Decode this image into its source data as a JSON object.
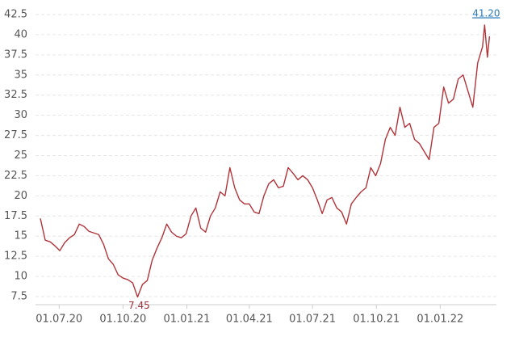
{
  "chart_data": {
    "type": "line",
    "color": "#b0343a",
    "x": [
      "2020-06-04",
      "2020-06-11",
      "2020-06-18",
      "2020-06-25",
      "2020-07-02",
      "2020-07-09",
      "2020-07-16",
      "2020-07-23",
      "2020-07-30",
      "2020-08-06",
      "2020-08-13",
      "2020-08-20",
      "2020-08-27",
      "2020-09-03",
      "2020-09-10",
      "2020-09-17",
      "2020-09-24",
      "2020-10-01",
      "2020-10-08",
      "2020-10-15",
      "2020-10-22",
      "2020-10-29",
      "2020-11-05",
      "2020-11-12",
      "2020-11-19",
      "2020-11-26",
      "2020-12-03",
      "2020-12-10",
      "2020-12-17",
      "2020-12-24",
      "2020-12-31",
      "2021-01-07",
      "2021-01-14",
      "2021-01-21",
      "2021-01-28",
      "2021-02-04",
      "2021-02-11",
      "2021-02-18",
      "2021-02-25",
      "2021-03-04",
      "2021-03-11",
      "2021-03-18",
      "2021-03-25",
      "2021-04-01",
      "2021-04-08",
      "2021-04-15",
      "2021-04-22",
      "2021-04-29",
      "2021-05-06",
      "2021-05-13",
      "2021-05-20",
      "2021-05-27",
      "2021-06-03",
      "2021-06-10",
      "2021-06-17",
      "2021-06-24",
      "2021-07-01",
      "2021-07-08",
      "2021-07-15",
      "2021-07-22",
      "2021-07-29",
      "2021-08-05",
      "2021-08-12",
      "2021-08-19",
      "2021-08-26",
      "2021-09-02",
      "2021-09-09",
      "2021-09-16",
      "2021-09-23",
      "2021-09-30",
      "2021-10-07",
      "2021-10-14",
      "2021-10-21",
      "2021-10-28",
      "2021-11-04",
      "2021-11-11",
      "2021-11-18",
      "2021-11-25",
      "2021-12-02",
      "2021-12-09",
      "2021-12-16",
      "2021-12-23",
      "2021-12-30",
      "2022-01-06",
      "2022-01-13",
      "2022-01-20",
      "2022-01-27",
      "2022-02-03",
      "2022-02-10",
      "2022-02-17",
      "2022-02-24",
      "2022-03-03",
      "2022-03-06",
      "2022-03-10",
      "2022-03-13"
    ],
    "values": [
      17.2,
      14.5,
      14.3,
      13.8,
      13.2,
      14.2,
      14.8,
      15.2,
      16.5,
      16.2,
      15.6,
      15.4,
      15.2,
      14.0,
      12.2,
      11.5,
      10.2,
      9.8,
      9.6,
      9.2,
      7.45,
      9.0,
      9.5,
      12.0,
      13.5,
      14.8,
      16.5,
      15.5,
      15.0,
      14.8,
      15.3,
      17.5,
      18.5,
      16.0,
      15.5,
      17.5,
      18.5,
      20.5,
      20.0,
      23.5,
      21.0,
      19.5,
      19.0,
      19.0,
      18.0,
      17.8,
      20.0,
      21.5,
      22.0,
      21.0,
      21.2,
      23.5,
      22.8,
      22.0,
      22.5,
      22.0,
      21.0,
      19.5,
      17.8,
      19.5,
      19.8,
      18.5,
      18.0,
      16.5,
      19.0,
      19.8,
      20.5,
      21.0,
      23.5,
      22.5,
      24.0,
      27.0,
      28.5,
      27.5,
      31.0,
      28.5,
      29.0,
      27.0,
      26.5,
      25.5,
      24.5,
      28.5,
      29.0,
      33.5,
      31.5,
      32.0,
      34.5,
      35.0,
      33.0,
      31.0,
      36.5,
      38.5,
      41.2,
      37.2,
      39.8
    ],
    "xlim": [
      "2020-05-28",
      "2022-03-23"
    ],
    "xticks": [
      {
        "value": "2020-07-01",
        "label": "01.07.20"
      },
      {
        "value": "2020-10-01",
        "label": "01.10.20"
      },
      {
        "value": "2021-01-01",
        "label": "01.01.21"
      },
      {
        "value": "2021-04-01",
        "label": "01.04.21"
      },
      {
        "value": "2021-07-01",
        "label": "01.07.21"
      },
      {
        "value": "2021-10-01",
        "label": "01.10.21"
      },
      {
        "value": "2022-01-01",
        "label": "01.01.22"
      }
    ],
    "ylim": [
      6.5,
      43.5
    ],
    "yticks": [
      7.5,
      10,
      12.5,
      15,
      17.5,
      20,
      22.5,
      25,
      27.5,
      30,
      32.5,
      35,
      37.5,
      40,
      42.5
    ],
    "grid": true,
    "annotations": [
      {
        "text": "7.45",
        "x": "2020-10-22",
        "y": 7.45,
        "color": "#a0303a",
        "position": "below"
      },
      {
        "text": "41.20",
        "x": "2022-03-06",
        "y": 41.2,
        "color": "#2a7ab8",
        "position": "above"
      }
    ]
  }
}
